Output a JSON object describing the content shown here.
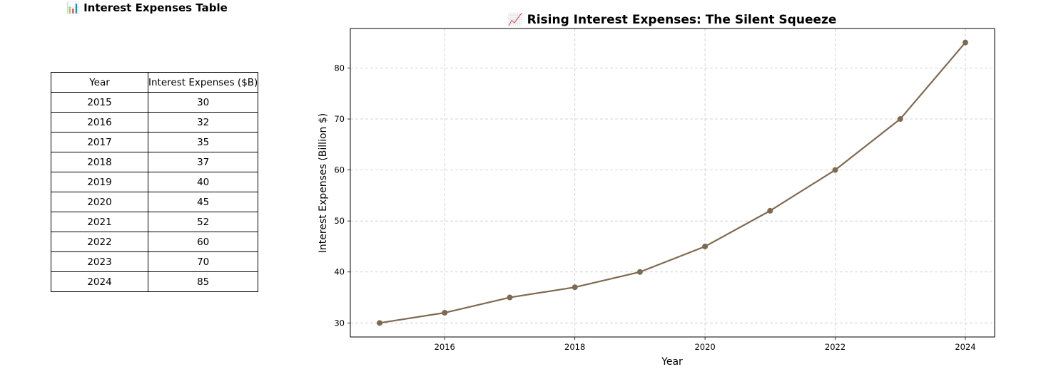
{
  "table": {
    "title": "📊 Interest Expenses Table",
    "headers": [
      "Year",
      "Interest Expenses ($B)"
    ],
    "rows": [
      [
        "2015",
        "30"
      ],
      [
        "2016",
        "32"
      ],
      [
        "2017",
        "35"
      ],
      [
        "2018",
        "37"
      ],
      [
        "2019",
        "40"
      ],
      [
        "2020",
        "45"
      ],
      [
        "2021",
        "52"
      ],
      [
        "2022",
        "60"
      ],
      [
        "2023",
        "70"
      ],
      [
        "2024",
        "85"
      ]
    ]
  },
  "chart_data": {
    "type": "line",
    "title": "📈 Rising Interest Expenses: The Silent Squeeze",
    "xlabel": "Year",
    "ylabel": "Interest Expenses (Billion $)",
    "x": [
      2015,
      2016,
      2017,
      2018,
      2019,
      2020,
      2021,
      2022,
      2023,
      2024
    ],
    "series": [
      {
        "name": "Interest Expenses",
        "values": [
          30,
          32,
          35,
          37,
          40,
          45,
          52,
          60,
          70,
          85
        ]
      }
    ],
    "xticks": [
      2016,
      2018,
      2020,
      2022,
      2024
    ],
    "yticks": [
      30,
      40,
      50,
      60,
      70,
      80
    ],
    "xlim": [
      2014.55,
      2024.45
    ],
    "ylim": [
      27.25,
      87.75
    ],
    "grid": true,
    "color": "#7f6a50"
  }
}
